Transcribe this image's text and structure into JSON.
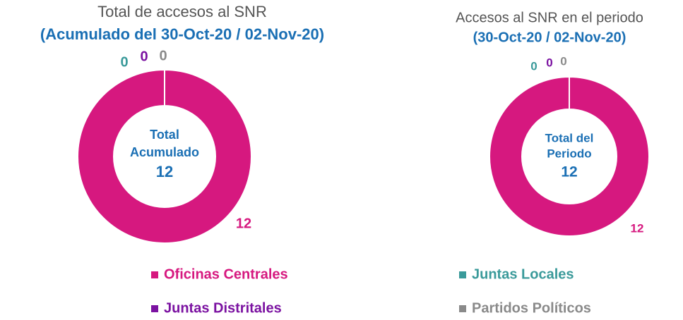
{
  "chart_data": [
    {
      "type": "pie",
      "title": "Total de accesos al SNR",
      "subtitle": "(Acumulado del 30-Oct-20 / 02-Nov-20)",
      "center_label": [
        "Total",
        "Acumulado"
      ],
      "center_value": 12,
      "categories": [
        "Oficinas Centrales",
        "Juntas Distritales",
        "Juntas Locales",
        "Partidos Políticos"
      ],
      "colors": [
        "#d6187f",
        "#7b12a1",
        "#3a9a9a",
        "#8a8a8a"
      ],
      "values": [
        12,
        0,
        0,
        0
      ]
    },
    {
      "type": "pie",
      "title": "Accesos al SNR en el periodo",
      "subtitle": "(30-Oct-20 / 02-Nov-20)",
      "center_label": [
        "Total del",
        "Periodo"
      ],
      "center_value": 12,
      "categories": [
        "Oficinas Centrales",
        "Juntas Distritales",
        "Juntas Locales",
        "Partidos Políticos"
      ],
      "colors": [
        "#d6187f",
        "#7b12a1",
        "#3a9a9a",
        "#8a8a8a"
      ],
      "values": [
        12,
        0,
        0,
        0
      ]
    }
  ]
}
